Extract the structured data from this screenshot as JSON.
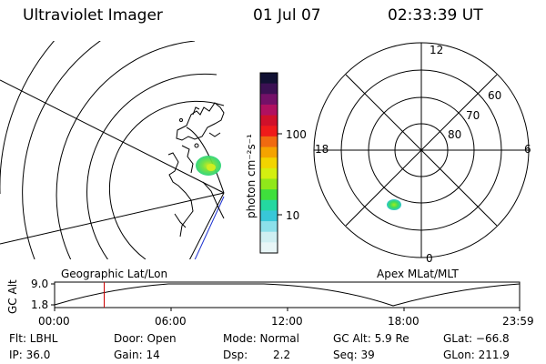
{
  "header": {
    "title": "Ultraviolet Imager",
    "date": "01 Jul 07",
    "time": "02:33:39 UT"
  },
  "colorbar": {
    "unit_label": "photon cm⁻²s⁻¹",
    "tick_100": "100",
    "tick_10": "10",
    "colors_top_to_bottom": [
      "#111133",
      "#3b1053",
      "#741068",
      "#b01060",
      "#d0102a",
      "#ef1a1a",
      "#f06a10",
      "#f5a300",
      "#f2d400",
      "#d4ef10",
      "#90e81a",
      "#3fdf3c",
      "#24d8a0",
      "#38c7d8",
      "#8ce0ea",
      "#cfeff2",
      "#e8f6f7"
    ]
  },
  "left_map": {
    "label": "Geographic Lat/Lon",
    "aurora_color": "#2fdc55",
    "aurora_core": "#b6ee20"
  },
  "polar_plot": {
    "label": "Apex MLat/MLT",
    "mlt_12": "12",
    "mlt_18": "18",
    "mlt_6": "6",
    "mlt_0": "0",
    "lat_60": "60",
    "lat_70": "70",
    "lat_80": "80"
  },
  "altitude_strip": {
    "ylabel": "GC Alt",
    "ymax": "9.0",
    "ymin": "1.8",
    "xticks": [
      "00:00",
      "06:00",
      "12:00",
      "18:00",
      "23:59"
    ],
    "current_time_marker_hours": 2.56,
    "marker_color": "#cc0000"
  },
  "status": {
    "flt": "Flt: LBHL",
    "door": "Door: Open",
    "mode": "Mode: Normal",
    "gc_alt": "GC Alt: 5.9 Re",
    "glat": "GLat: −66.8",
    "ip": "IP: 36.0",
    "gain": "Gain: 14",
    "dsp_label": "Dsp:",
    "dsp_value": "2.2",
    "seq": "Seq: 39",
    "glon": "GLon: 211.9"
  }
}
